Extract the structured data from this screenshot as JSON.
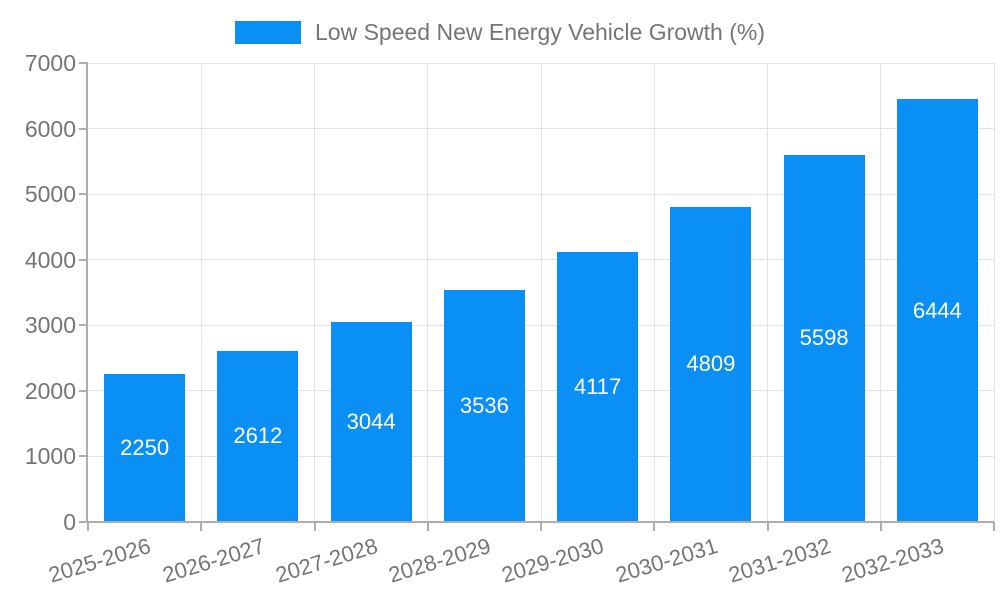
{
  "chart_data": {
    "type": "bar",
    "title": "",
    "legend": {
      "label": "Low Speed New Energy Vehicle Growth (%)"
    },
    "categories": [
      "2025-2026",
      "2026-2027",
      "2027-2028",
      "2028-2029",
      "2029-2030",
      "2030-2031",
      "2031-2032",
      "2032-2033"
    ],
    "values": [
      2250,
      2612,
      3044,
      3536,
      4117,
      4809,
      5598,
      6444
    ],
    "xlabel": "",
    "ylabel": "",
    "ylim": [
      0,
      7000
    ],
    "yticks": [
      0,
      1000,
      2000,
      3000,
      4000,
      5000,
      6000,
      7000
    ],
    "grid": true,
    "legend_position": "top-center",
    "value_label_position": "inside-center",
    "x_tick_rotation_deg": -17,
    "colors": {
      "bar": "#0A90F5",
      "grid": "#E3E3E3",
      "axis": "#ADADAD",
      "text": "#757575",
      "value_label": "#FFFFFF",
      "background": "#FFFFFF"
    }
  }
}
